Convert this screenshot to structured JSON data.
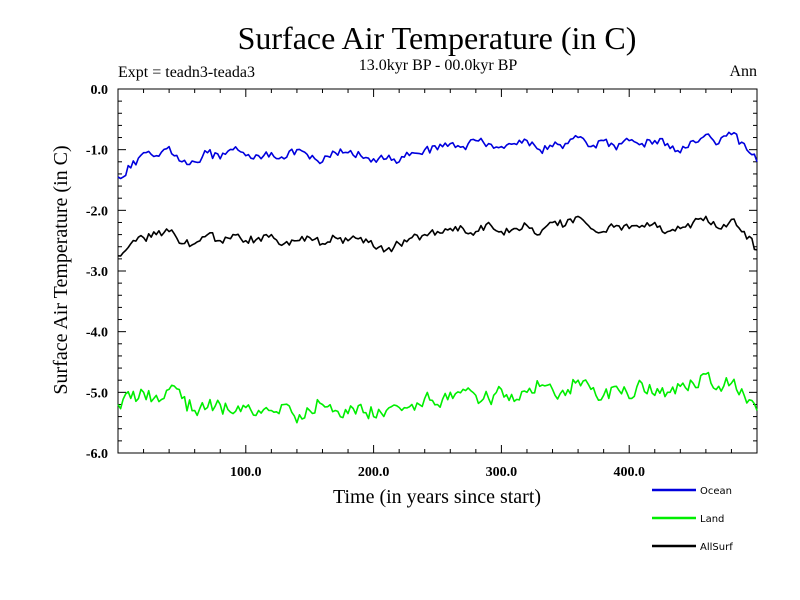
{
  "chart_data": {
    "type": "line",
    "title": "Surface Air Temperature (in C)",
    "subtitle": "13.0kyr BP - 00.0kyr BP",
    "experiment_label": "Expt = teadn3-teada3",
    "season_label": "Ann",
    "xlabel": "Time (in years since start)",
    "ylabel": "Surface Air Temperature (in C)",
    "xlim": [
      0,
      500
    ],
    "ylim": [
      -6.0,
      0.0
    ],
    "x_ticks": [
      100,
      200,
      300,
      400
    ],
    "x_tick_labels": [
      "100.0",
      "200.0",
      "300.0",
      "400.0"
    ],
    "y_ticks": [
      0,
      -1,
      -2,
      -3,
      -4,
      -5,
      -6
    ],
    "y_tick_labels": [
      "0.0",
      "-1.0",
      "-2.0",
      "-3.0",
      "-4.0",
      "-5.0",
      "-6.0"
    ],
    "legend_position": "bottom-right outside",
    "series": [
      {
        "name": "Ocean",
        "color": "#0000dd",
        "x": [
          0,
          10,
          20,
          30,
          40,
          50,
          60,
          70,
          80,
          90,
          100,
          110,
          120,
          130,
          140,
          150,
          160,
          170,
          180,
          190,
          200,
          210,
          220,
          230,
          240,
          250,
          260,
          270,
          280,
          290,
          300,
          310,
          320,
          330,
          340,
          350,
          360,
          370,
          380,
          390,
          400,
          410,
          420,
          430,
          440,
          450,
          460,
          470,
          480,
          490,
          500
        ],
        "values": [
          -1.45,
          -1.3,
          -1.05,
          -1.1,
          -0.95,
          -1.2,
          -1.2,
          -1.05,
          -1.15,
          -1.0,
          -1.1,
          -1.1,
          -1.05,
          -1.15,
          -1.0,
          -1.15,
          -1.2,
          -1.05,
          -1.05,
          -1.1,
          -1.15,
          -1.15,
          -1.2,
          -1.05,
          -1.0,
          -1.0,
          -0.9,
          -0.95,
          -0.85,
          -0.9,
          -0.95,
          -0.9,
          -0.85,
          -1.0,
          -0.95,
          -0.9,
          -0.8,
          -0.95,
          -0.85,
          -1.0,
          -0.85,
          -0.9,
          -0.85,
          -0.9,
          -1.05,
          -0.85,
          -0.75,
          -0.9,
          -0.75,
          -0.9,
          -1.2
        ]
      },
      {
        "name": "Land",
        "color": "#00ee00",
        "x": [
          0,
          10,
          20,
          30,
          40,
          50,
          60,
          70,
          80,
          90,
          100,
          110,
          120,
          130,
          140,
          150,
          160,
          170,
          180,
          190,
          200,
          210,
          220,
          230,
          240,
          250,
          260,
          270,
          280,
          290,
          300,
          310,
          320,
          330,
          340,
          350,
          360,
          370,
          380,
          390,
          400,
          410,
          420,
          430,
          440,
          450,
          460,
          470,
          480,
          490,
          500
        ],
        "values": [
          -5.2,
          -5.1,
          -5.0,
          -5.05,
          -4.95,
          -5.1,
          -5.3,
          -5.25,
          -5.2,
          -5.35,
          -5.25,
          -5.3,
          -5.3,
          -5.2,
          -5.5,
          -5.3,
          -5.2,
          -5.3,
          -5.35,
          -5.2,
          -5.4,
          -5.3,
          -5.25,
          -5.2,
          -5.1,
          -5.2,
          -5.0,
          -4.95,
          -5.05,
          -5.1,
          -4.95,
          -5.15,
          -5.0,
          -4.9,
          -4.95,
          -5.05,
          -4.8,
          -4.95,
          -5.05,
          -4.9,
          -5.1,
          -4.85,
          -5.05,
          -5.0,
          -4.9,
          -4.85,
          -4.7,
          -4.9,
          -4.85,
          -5.05,
          -5.3
        ]
      },
      {
        "name": "AllSurf",
        "color": "#000000",
        "x": [
          0,
          10,
          20,
          30,
          40,
          50,
          60,
          70,
          80,
          90,
          100,
          110,
          120,
          130,
          140,
          150,
          160,
          170,
          180,
          190,
          200,
          210,
          220,
          230,
          240,
          250,
          260,
          270,
          280,
          290,
          300,
          310,
          320,
          330,
          340,
          350,
          360,
          370,
          380,
          390,
          400,
          410,
          420,
          430,
          440,
          450,
          460,
          470,
          480,
          490,
          500
        ],
        "values": [
          -2.75,
          -2.55,
          -2.45,
          -2.4,
          -2.35,
          -2.55,
          -2.55,
          -2.4,
          -2.5,
          -2.4,
          -2.5,
          -2.45,
          -2.4,
          -2.55,
          -2.5,
          -2.45,
          -2.55,
          -2.45,
          -2.5,
          -2.45,
          -2.6,
          -2.65,
          -2.55,
          -2.45,
          -2.4,
          -2.35,
          -2.3,
          -2.3,
          -2.35,
          -2.2,
          -2.35,
          -2.3,
          -2.25,
          -2.4,
          -2.2,
          -2.25,
          -2.1,
          -2.3,
          -2.35,
          -2.25,
          -2.3,
          -2.25,
          -2.2,
          -2.35,
          -2.3,
          -2.2,
          -2.1,
          -2.3,
          -2.15,
          -2.35,
          -2.65
        ]
      }
    ]
  }
}
